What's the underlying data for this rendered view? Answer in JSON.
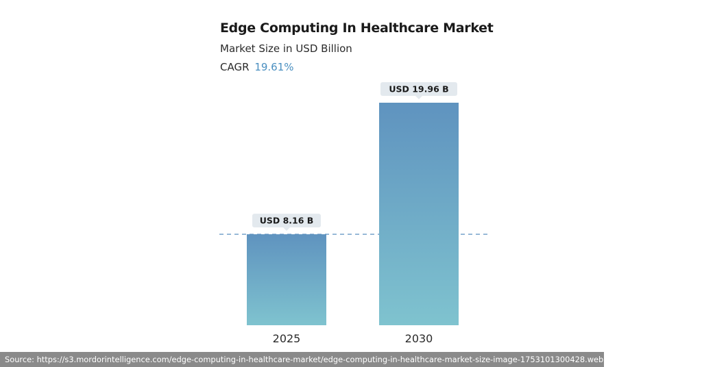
{
  "chart_data": {
    "type": "bar",
    "title": "Edge Computing In Healthcare Market",
    "subtitle": "Market Size in USD Billion",
    "cagr_label": "CAGR",
    "cagr_value": "19.61%",
    "categories": [
      "2025",
      "2030"
    ],
    "values": [
      8.16,
      19.96
    ],
    "data_labels": [
      "USD 8.16 B",
      "USD 19.96 B"
    ],
    "reference_line": 8.16,
    "ylim": [
      0,
      20.5
    ],
    "grid": false,
    "colors": {
      "bar_top": "#5f93bf",
      "bar_bottom": "#7fc3cf",
      "label_bg": "#e3e9ee",
      "reference_line": "#5a8fc0",
      "cagr_value": "#4a8fc0"
    }
  },
  "source_text": "Source: https://s3.mordorintelligence.com/edge-computing-in-healthcare-market/edge-computing-in-healthcare-market-size-image-1753101300428.webp"
}
